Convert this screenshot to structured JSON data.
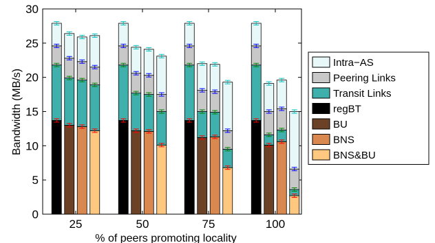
{
  "chart_data": {
    "type": "bar",
    "stacked": true,
    "xlabel": "% of peers promoting locality",
    "ylabel": "Bandwidth (MB/s)",
    "ylim": [
      0,
      30
    ],
    "yticks": [
      0,
      5,
      10,
      15,
      20,
      25,
      30
    ],
    "groups": [
      "25",
      "50",
      "75",
      "100"
    ],
    "schemes": [
      "regBT",
      "BU",
      "BNS",
      "BNS&BU"
    ],
    "layers": [
      {
        "name": "Intra−AS",
        "color": "#e8f8f8"
      },
      {
        "name": "Peering Links",
        "color": "#c8c8c8"
      },
      {
        "name": "Transit Links",
        "color": "#40b0ac"
      }
    ],
    "base_colors": {
      "regBT": "#000000",
      "BU": "#6b4226",
      "BNS": "#d98850",
      "BNS&BU": "#ffc880"
    },
    "legend": [
      {
        "label": "Intra−AS",
        "color": "#e8f8f8"
      },
      {
        "label": "Peering Links",
        "color": "#c8c8c8"
      },
      {
        "label": "Transit Links",
        "color": "#40b0ac"
      },
      {
        "label": "regBT",
        "color": "#000000"
      },
      {
        "label": "BU",
        "color": "#6b4226"
      },
      {
        "label": "BNS",
        "color": "#d98850"
      },
      {
        "label": "BNS&BU",
        "color": "#ffc880"
      }
    ],
    "legend_position": "right",
    "grid": false,
    "bars": [
      {
        "group": "25",
        "scheme": "regBT",
        "cumulative": [
          13.7,
          21.8,
          24.6,
          27.9
        ]
      },
      {
        "group": "25",
        "scheme": "BU",
        "cumulative": [
          13.0,
          19.9,
          22.8,
          26.4
        ]
      },
      {
        "group": "25",
        "scheme": "BNS",
        "cumulative": [
          12.8,
          19.6,
          22.3,
          25.9
        ]
      },
      {
        "group": "25",
        "scheme": "BNS&BU",
        "cumulative": [
          12.2,
          18.9,
          21.5,
          26.1
        ]
      },
      {
        "group": "50",
        "scheme": "regBT",
        "cumulative": [
          13.7,
          21.8,
          24.6,
          27.9
        ]
      },
      {
        "group": "50",
        "scheme": "BU",
        "cumulative": [
          12.2,
          17.7,
          20.6,
          24.4
        ]
      },
      {
        "group": "50",
        "scheme": "BNS",
        "cumulative": [
          12.1,
          17.5,
          20.3,
          24.1
        ]
      },
      {
        "group": "50",
        "scheme": "BNS&BU",
        "cumulative": [
          10.1,
          15.0,
          17.5,
          23.1
        ]
      },
      {
        "group": "75",
        "scheme": "regBT",
        "cumulative": [
          13.7,
          21.8,
          24.6,
          27.9
        ]
      },
      {
        "group": "75",
        "scheme": "BU",
        "cumulative": [
          11.2,
          15.0,
          18.1,
          22.0
        ]
      },
      {
        "group": "75",
        "scheme": "BNS",
        "cumulative": [
          11.3,
          14.9,
          17.9,
          21.9
        ]
      },
      {
        "group": "75",
        "scheme": "BNS&BU",
        "cumulative": [
          6.8,
          9.5,
          12.2,
          19.3
        ]
      },
      {
        "group": "100",
        "scheme": "regBT",
        "cumulative": [
          13.7,
          21.8,
          24.6,
          27.9
        ]
      },
      {
        "group": "100",
        "scheme": "BU",
        "cumulative": [
          10.1,
          11.6,
          15.0,
          19.1
        ]
      },
      {
        "group": "100",
        "scheme": "BNS",
        "cumulative": [
          10.6,
          12.3,
          15.4,
          19.6
        ]
      },
      {
        "group": "100",
        "scheme": "BNS&BU",
        "cumulative": [
          2.7,
          3.6,
          6.6,
          15.0
        ]
      }
    ],
    "error_bar_colors": [
      "#ff0000",
      "#008000",
      "#0000ff",
      "#00bfbf"
    ]
  }
}
